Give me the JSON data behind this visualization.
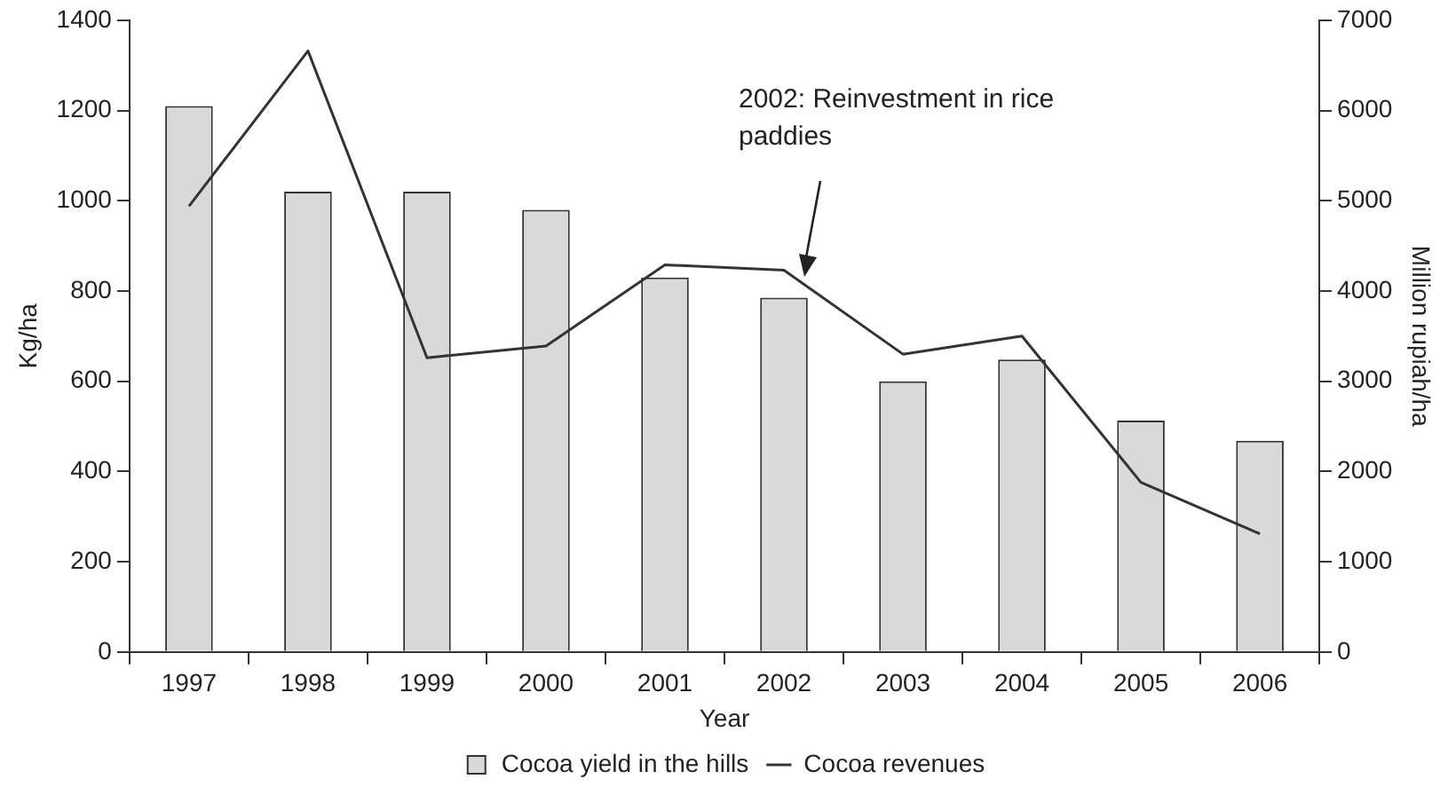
{
  "chart_data": {
    "type": "bar",
    "xlabel": "Year",
    "ylabel": "Kg/ha",
    "y2label": "Million rupiah/ha",
    "categories": [
      "1997",
      "1998",
      "1999",
      "2000",
      "2001",
      "2002",
      "2003",
      "2004",
      "2005",
      "2006"
    ],
    "series": [
      {
        "name": "Cocoa yield in the hills",
        "type": "bar",
        "color": "#d9d9d9",
        "values": [
          1210,
          1020,
          1020,
          980,
          830,
          785,
          600,
          648,
          513,
          468
        ]
      },
      {
        "name": "Cocoa revenues",
        "type": "line",
        "axis": "y2",
        "color": "#333333",
        "values": [
          4940,
          6660,
          3260,
          3390,
          4290,
          4230,
          3300,
          3500,
          1880,
          1310
        ]
      }
    ],
    "ylim": [
      0,
      1400
    ],
    "yticks": [
      0,
      200,
      400,
      600,
      800,
      1000,
      1200,
      1400
    ],
    "y2lim": [
      0,
      7000
    ],
    "y2ticks": [
      0,
      1000,
      2000,
      3000,
      4000,
      5000,
      6000,
      7000
    ],
    "annotations": [
      "2002: Reinvestment in rice paddies"
    ],
    "grid": false,
    "legend": "bottom",
    "marker": "none",
    "line_style": "solid"
  }
}
